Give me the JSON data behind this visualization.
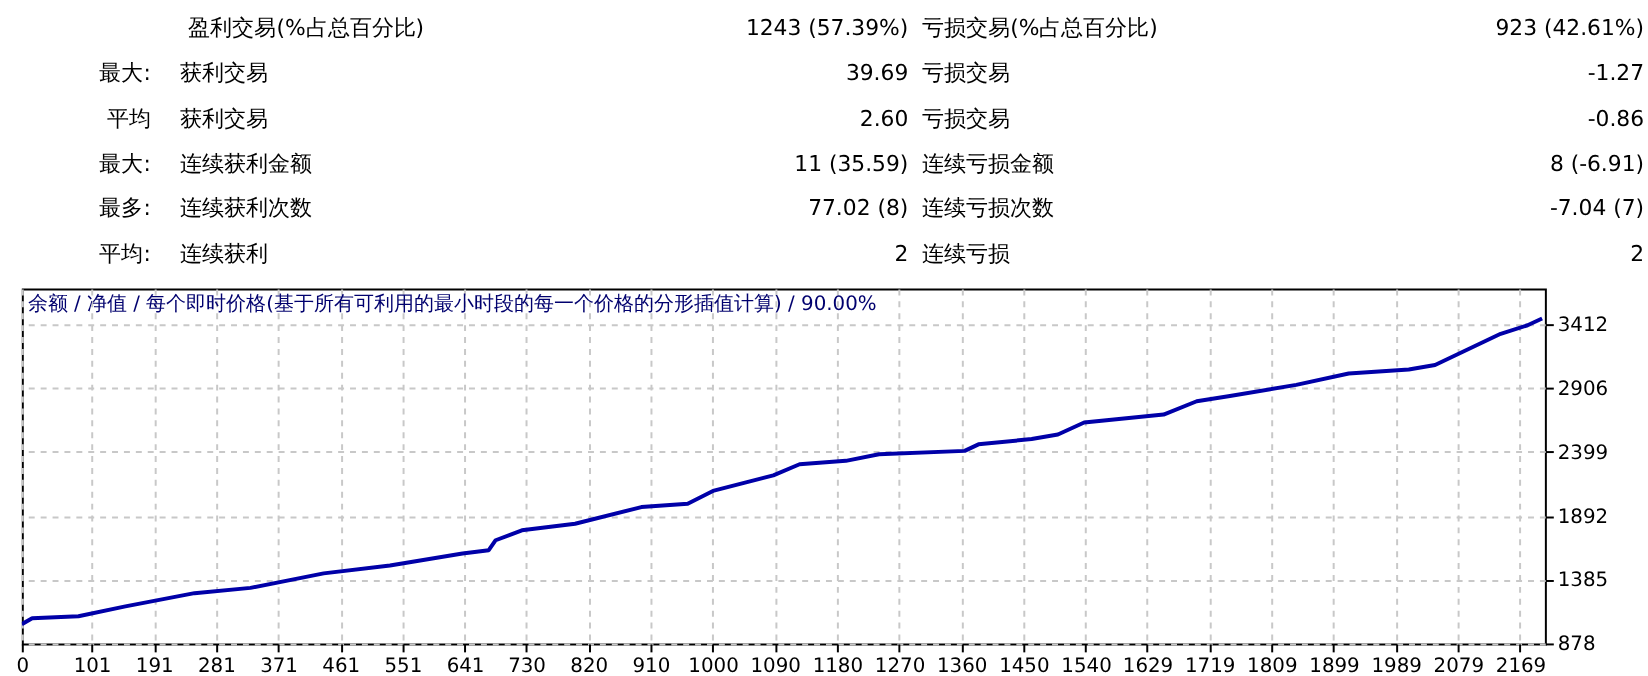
{
  "chart_data": {
    "type": "line",
    "title": "余额 / 净值 / 每个即时价格(基于所有可利用的最小时段的每一个价格的分形插值计算) / 90.00%",
    "annotations": [
      "盈利交易(%占总百分比)",
      "1243 (57.39%)",
      "亏损交易(%占总百分比)",
      "923 (42.61%)",
      "最大:",
      "获利交易",
      "39.69",
      "亏损交易",
      "-1.27",
      "平均",
      "获利交易",
      "2.60",
      "亏损交易",
      "-0.86",
      "最大:",
      "连续获利金额",
      "11 (35.59)",
      "连续亏损金额",
      "8 (-6.91)",
      "最多:",
      "连续获利次数",
      "77.02 (8)",
      "连续亏损次数",
      "-7.04 (7)",
      "平均:",
      "连续获利",
      "2",
      "连续亏损",
      "2"
    ],
    "x": [
      0,
      15,
      82,
      150,
      250,
      331,
      437,
      533,
      638,
      676,
      686,
      724,
      801,
      897,
      964,
      1002,
      1088,
      1126,
      1193,
      1241,
      1365,
      1385,
      1462,
      1500,
      1538,
      1653,
      1701,
      1749,
      1845,
      1921,
      2008,
      2046,
      2103,
      2141,
      2180,
      2201
    ],
    "series": [
      {
        "color": "#0000a8",
        "values": [
          1031,
          1078,
          1094,
          1172,
          1277,
          1319,
          1434,
          1497,
          1592,
          1618,
          1697,
          1776,
          1828,
          1960,
          1986,
          2091,
          2212,
          2300,
          2327,
          2379,
          2406,
          2458,
          2500,
          2536,
          2631,
          2694,
          2800,
          2842,
          2930,
          3020,
          3052,
          3088,
          3236,
          3335,
          3403,
          3456
        ]
      }
    ],
    "xlim": [
      0,
      2205
    ],
    "ylim": [
      878,
      3695
    ],
    "xticks": [
      0,
      101,
      191,
      281,
      371,
      461,
      551,
      641,
      730,
      820,
      910,
      1000,
      1090,
      1180,
      1270,
      1360,
      1450,
      1540,
      1629,
      1719,
      1809,
      1899,
      1989,
      2079,
      2169
    ],
    "yticks": [
      878,
      1385,
      1892,
      2399,
      2906,
      3412
    ],
    "grid": true,
    "line_style": "solid",
    "marker": "none"
  }
}
